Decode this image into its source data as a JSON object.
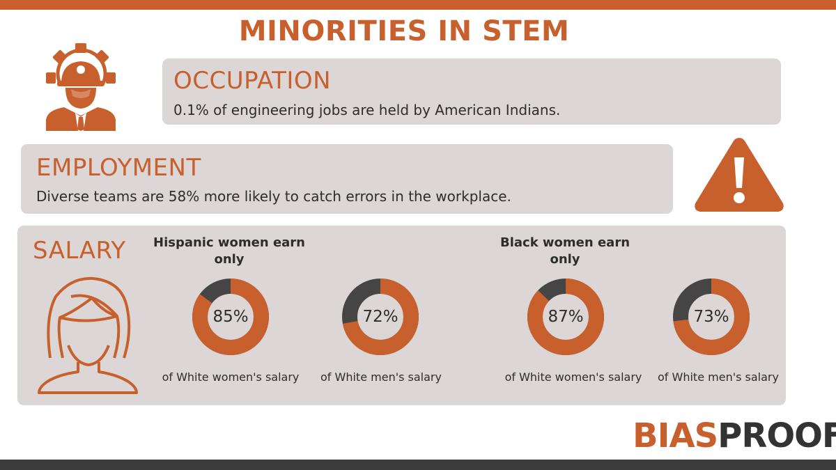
{
  "title": "MINORITIES IN STEM",
  "colors": {
    "accent": "#c8602d",
    "panel": "#dcd6d6",
    "dark": "#454545",
    "text": "#2d2d2d"
  },
  "occupation": {
    "heading": "OCCUPATION",
    "text": "0.1% of engineering jobs are held by American Indians.",
    "icon": "engineer-gear-icon"
  },
  "employment": {
    "heading": "EMPLOYMENT",
    "text": "Diverse teams are 58% more likely to catch errors in the workplace.",
    "icon": "warning-icon"
  },
  "salary": {
    "heading": "SALARY",
    "icon": "woman-icon",
    "groups": [
      {
        "label": "Hispanic women earn only",
        "stats": [
          {
            "value": 85,
            "display": "85%",
            "caption": "of White women's salary"
          },
          {
            "value": 72,
            "display": "72%",
            "caption": "of White men's salary"
          }
        ]
      },
      {
        "label": "Black women earn only",
        "stats": [
          {
            "value": 87,
            "display": "87%",
            "caption": "of White women's salary"
          },
          {
            "value": 73,
            "display": "73%",
            "caption": "of White men's salary"
          }
        ]
      }
    ]
  },
  "logo": {
    "part1": "BIAS",
    "part2": "PROOF"
  }
}
